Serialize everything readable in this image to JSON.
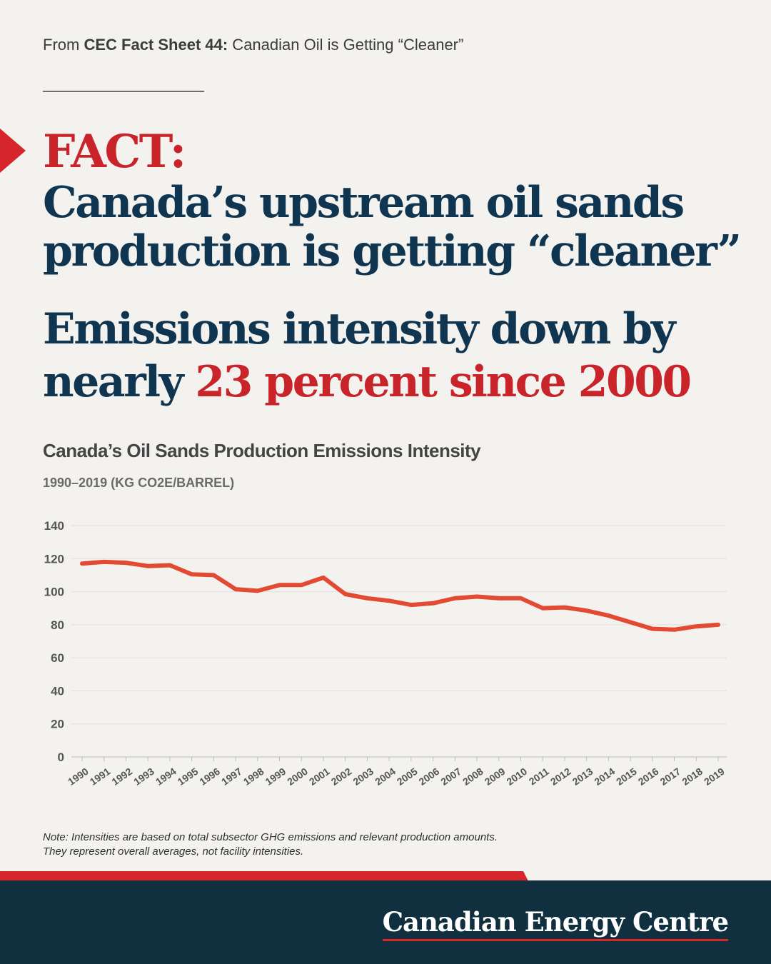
{
  "header": {
    "source_prefix": "From ",
    "source_bold": "CEC Fact Sheet 44:",
    "source_rest": " Canadian Oil is Getting “Cleaner”"
  },
  "headline": {
    "fact_label": "FACT:",
    "line1": "Canada’s upstream oil sands",
    "line2": "production is getting “cleaner”",
    "line3": "Emissions intensity down by",
    "line4_prefix": "nearly ",
    "line4_highlight": "23 percent since 2000"
  },
  "chart": {
    "title": "Canada’s Oil Sands Production Emissions Intensity",
    "subtitle": "1990–2019 (KG CO2E/BARREL)"
  },
  "chart_data": {
    "type": "line",
    "title": "Canada’s Oil Sands Production Emissions Intensity",
    "subtitle": "1990–2019 (KG CO2E/BARREL)",
    "xlabel": "",
    "ylabel": "",
    "ylim": [
      0,
      140
    ],
    "yticks": [
      0,
      20,
      40,
      60,
      80,
      100,
      120,
      140
    ],
    "grid": true,
    "line_color": "#e34a33",
    "categories": [
      "1990",
      "1991",
      "1992",
      "1993",
      "1994",
      "1995",
      "1996",
      "1997",
      "1998",
      "1999",
      "2000",
      "2001",
      "2002",
      "2003",
      "2004",
      "2005",
      "2006",
      "2007",
      "2008",
      "2009",
      "2010",
      "2011",
      "2012",
      "2013",
      "2014",
      "2015",
      "2016",
      "2017",
      "2018",
      "2019"
    ],
    "values": [
      117,
      118,
      117.5,
      115.5,
      116,
      110.5,
      110,
      101.5,
      100.5,
      104,
      104,
      108.5,
      98.5,
      96,
      94.5,
      92,
      93,
      96,
      97,
      96,
      96,
      90,
      90.5,
      88.5,
      85.5,
      81.5,
      77.5,
      77,
      79,
      80
    ]
  },
  "note": {
    "line1": "Note: Intensities are based on total subsector GHG emissions and relevant production amounts.",
    "line2": "They represent overall averages, not facility intensities."
  },
  "footer": {
    "brand": "Canadian Energy Centre"
  },
  "colors": {
    "navy": "#0f3550",
    "red": "#c8242a",
    "footer_bg": "#10303f",
    "background": "#f3f2ef"
  }
}
